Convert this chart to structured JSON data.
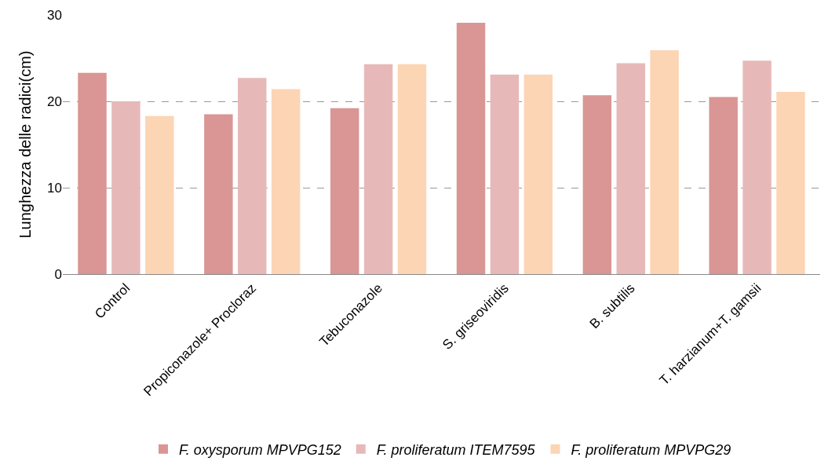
{
  "chart_data": {
    "type": "bar",
    "ylabel": "Lunghezza delle radici(cm)",
    "categories": [
      "Control",
      "Propiconazole+ Procloraz",
      "Tebuconazole",
      "S. griseoviridis",
      "B. subtilis",
      "T. harzianum+T. gamsii"
    ],
    "series": [
      {
        "name": "F. oxysporum MPVPG152",
        "color": "#d99694",
        "values": [
          23.3,
          18.5,
          19.2,
          29.1,
          20.7,
          20.5
        ]
      },
      {
        "name": "F. proliferatum ITEM7595",
        "color": "#e6b9b8",
        "values": [
          20.0,
          22.7,
          24.3,
          23.1,
          24.4,
          24.7
        ]
      },
      {
        "name": "F. proliferatum MPVPG29",
        "color": "#fcd5b5",
        "values": [
          18.3,
          21.4,
          24.3,
          23.1,
          25.9,
          21.1
        ]
      }
    ],
    "ylim": [
      0,
      30
    ],
    "yticks": [
      0,
      10,
      20,
      30
    ],
    "grid": "y",
    "legend": "bottom"
  }
}
